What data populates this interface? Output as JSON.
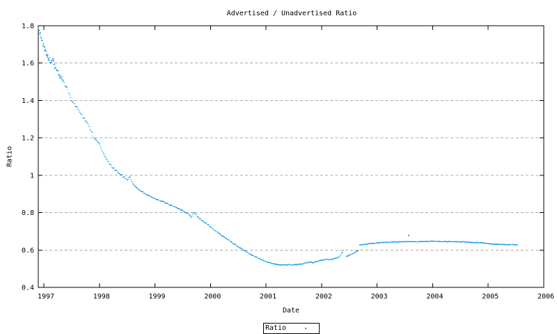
{
  "chart": {
    "title": "Advertised / Unadvertised Ratio",
    "xlabel": "Date",
    "ylabel": "Ratio",
    "legend": {
      "label": "Ratio"
    }
  },
  "chart_data": {
    "type": "scatter",
    "marker": "dots",
    "title": "Advertised / Unadvertised Ratio",
    "xlabel": "Date",
    "ylabel": "Ratio",
    "xlim": [
      1996.9,
      2006
    ],
    "ylim": [
      0.4,
      1.8
    ],
    "x_ticks": [
      {
        "v": 1997,
        "label": "1997"
      },
      {
        "v": 1998,
        "label": "1998"
      },
      {
        "v": 1999,
        "label": "1999"
      },
      {
        "v": 2000,
        "label": "2000"
      },
      {
        "v": 2001,
        "label": "2001"
      },
      {
        "v": 2002,
        "label": "2002"
      },
      {
        "v": 2003,
        "label": "2003"
      },
      {
        "v": 2004,
        "label": "2004"
      },
      {
        "v": 2005,
        "label": "2005"
      },
      {
        "v": 2006,
        "label": "2006"
      }
    ],
    "y_ticks": [
      {
        "v": 0.4,
        "label": "0.4"
      },
      {
        "v": 0.6,
        "label": "0.6"
      },
      {
        "v": 0.8,
        "label": "0.8"
      },
      {
        "v": 1.0,
        "label": "1"
      },
      {
        "v": 1.2,
        "label": "1.2"
      },
      {
        "v": 1.4,
        "label": "1.4"
      },
      {
        "v": 1.6,
        "label": "1.6"
      },
      {
        "v": 1.8,
        "label": "1.8"
      }
    ],
    "grid": "horizontal-dashed",
    "grid_color": "#a8a8a8",
    "axis_color": "#000000",
    "legend_position": "below-plot-center",
    "series": [
      {
        "name": "Ratio",
        "color": "#1497e3",
        "style": "dots",
        "segments": [
          [
            [
              1996.9,
              1.785
            ],
            [
              1996.93,
              1.76
            ],
            [
              1996.97,
              1.72
            ],
            [
              1997.0,
              1.69
            ],
            [
              1997.04,
              1.655
            ],
            [
              1997.08,
              1.62
            ],
            [
              1997.12,
              1.6
            ],
            [
              1997.16,
              1.625
            ],
            [
              1997.2,
              1.58
            ],
            [
              1997.25,
              1.555
            ],
            [
              1997.3,
              1.525
            ],
            [
              1997.35,
              1.5
            ],
            [
              1997.4,
              1.475
            ],
            [
              1997.45,
              1.44
            ],
            [
              1997.5,
              1.4
            ],
            [
              1997.55,
              1.385
            ],
            [
              1997.6,
              1.36
            ],
            [
              1997.65,
              1.34
            ],
            [
              1997.7,
              1.315
            ],
            [
              1997.75,
              1.295
            ],
            [
              1997.8,
              1.27
            ],
            [
              1997.85,
              1.24
            ],
            [
              1997.9,
              1.2
            ],
            [
              1997.95,
              1.185
            ],
            [
              1998.0,
              1.165
            ],
            [
              1998.05,
              1.13
            ],
            [
              1998.1,
              1.1
            ],
            [
              1998.15,
              1.075
            ],
            [
              1998.2,
              1.055
            ],
            [
              1998.3,
              1.025
            ],
            [
              1998.4,
              1.0
            ],
            [
              1998.5,
              0.975
            ],
            [
              1998.55,
              0.99
            ],
            [
              1998.6,
              0.955
            ],
            [
              1998.7,
              0.925
            ],
            [
              1998.8,
              0.905
            ],
            [
              1998.9,
              0.89
            ],
            [
              1999.0,
              0.875
            ],
            [
              1999.1,
              0.862
            ],
            [
              1999.2,
              0.85
            ],
            [
              1999.3,
              0.838
            ],
            [
              1999.4,
              0.825
            ],
            [
              1999.5,
              0.81
            ],
            [
              1999.6,
              0.795
            ],
            [
              1999.65,
              0.775
            ],
            [
              1999.7,
              0.8
            ],
            [
              1999.75,
              0.786
            ],
            [
              1999.8,
              0.768
            ],
            [
              1999.9,
              0.747
            ],
            [
              2000.0,
              0.725
            ],
            [
              2000.1,
              0.7
            ],
            [
              2000.2,
              0.678
            ],
            [
              2000.3,
              0.658
            ],
            [
              2000.4,
              0.638
            ],
            [
              2000.5,
              0.618
            ],
            [
              2000.6,
              0.6
            ],
            [
              2000.7,
              0.58
            ],
            [
              2000.8,
              0.565
            ],
            [
              2000.9,
              0.55
            ],
            [
              2001.0,
              0.538
            ],
            [
              2001.1,
              0.528
            ],
            [
              2001.2,
              0.522
            ],
            [
              2001.35,
              0.52
            ],
            [
              2001.5,
              0.521
            ],
            [
              2001.65,
              0.524
            ],
            [
              2001.7,
              0.53
            ],
            [
              2001.8,
              0.535
            ],
            [
              2001.85,
              0.531
            ],
            [
              2001.9,
              0.538
            ],
            [
              2001.95,
              0.543
            ],
            [
              2002.0,
              0.545
            ],
            [
              2002.08,
              0.549
            ],
            [
              2002.15,
              0.548
            ],
            [
              2002.25,
              0.553
            ],
            [
              2002.33,
              0.568
            ],
            [
              2002.39,
              0.595
            ]
          ],
          [
            [
              2002.45,
              0.566
            ],
            [
              2002.53,
              0.576
            ],
            [
              2002.6,
              0.588
            ],
            [
              2002.66,
              0.597
            ]
          ],
          [
            [
              2002.69,
              0.627
            ],
            [
              2002.8,
              0.631
            ],
            [
              2002.95,
              0.637
            ],
            [
              2003.1,
              0.64
            ],
            [
              2003.3,
              0.643
            ],
            [
              2003.5,
              0.645
            ],
            [
              2003.7,
              0.644
            ],
            [
              2003.9,
              0.646
            ],
            [
              2004.0,
              0.647
            ],
            [
              2004.1,
              0.646
            ],
            [
              2004.3,
              0.645
            ],
            [
              2004.5,
              0.644
            ],
            [
              2004.7,
              0.641
            ],
            [
              2004.9,
              0.638
            ],
            [
              2005.0,
              0.634
            ],
            [
              2005.15,
              0.631
            ],
            [
              2005.3,
              0.629
            ],
            [
              2005.42,
              0.628
            ],
            [
              2005.52,
              0.628
            ]
          ]
        ],
        "outliers": [
          [
            2003.57,
            0.678
          ]
        ]
      }
    ]
  }
}
